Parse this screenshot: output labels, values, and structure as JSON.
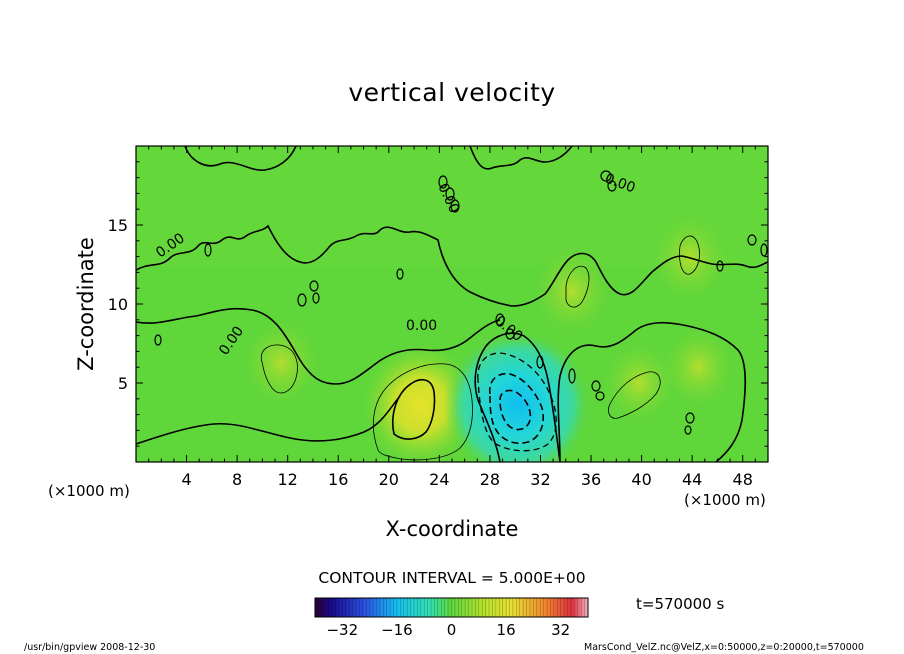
{
  "chart_data": {
    "type": "heatmap",
    "title": "vertical velocity",
    "xlabel": "X-coordinate",
    "ylabel": "Z-coordinate",
    "x_unit_left": "(×1000 m)",
    "x_unit_right": "(×1000 m)",
    "xlim": [
      0,
      50
    ],
    "ylim": [
      0,
      20
    ],
    "x_ticks": [
      4,
      8,
      12,
      16,
      20,
      24,
      28,
      32,
      36,
      40,
      44,
      48
    ],
    "y_ticks": [
      5,
      10,
      15
    ],
    "contour_interval_text": "CONTOUR INTERVAL = 5.000E+00",
    "contour_labels": [
      "0.00",
      "0.00",
      "0.00",
      "0.00",
      "0.00",
      "0.00"
    ],
    "time_text": "t=570000 s",
    "colorbar": {
      "range": [
        -40,
        40
      ],
      "ticks": [
        -32,
        -16,
        0,
        16,
        32
      ],
      "colormap": "rainbow"
    },
    "features": [
      {
        "x": 22.5,
        "z": 3.6,
        "value": 14,
        "label": "updraft max"
      },
      {
        "x": 11.5,
        "z": 6.3,
        "value": 7
      },
      {
        "x": 30.2,
        "z": 3.6,
        "value": -20,
        "label": "downdraft min"
      },
      {
        "x": 34.5,
        "z": 10.8,
        "value": 7
      },
      {
        "x": 39.8,
        "z": 5.0,
        "value": 6
      },
      {
        "x": 43.8,
        "z": 12.9,
        "value": 7
      },
      {
        "x": 44.5,
        "z": 6.0,
        "value": 6
      }
    ]
  },
  "footer": {
    "left": "/usr/bin/gpview   2008-12-30",
    "right": "MarsCond_VelZ.nc@VelZ,x=0:50000,z=0:20000,t=570000"
  },
  "colors": {
    "background_field": "#5fd63a",
    "positive_core": "#d7e22b",
    "negative_core": "#16cfe6",
    "contour": "#000000"
  }
}
